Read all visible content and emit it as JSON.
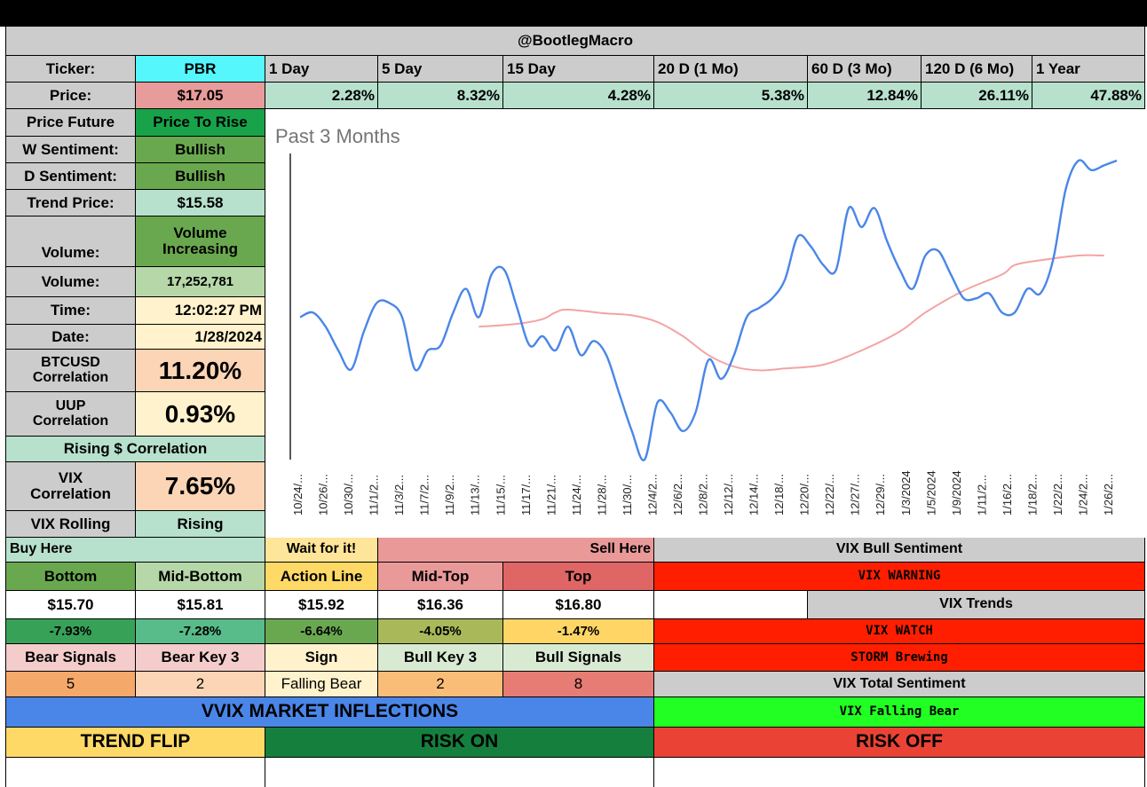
{
  "header": {
    "title": "@BootlegMacro"
  },
  "ticker": {
    "label": "Ticker:",
    "value": "PBR"
  },
  "price": {
    "label": "Price:",
    "value": "$17.05"
  },
  "periods": [
    {
      "label": "1 Day",
      "value": "2.28%"
    },
    {
      "label": "5 Day",
      "value": "8.32%"
    },
    {
      "label": "15 Day",
      "value": "4.28%"
    },
    {
      "label": "20 D (1 Mo)",
      "value": "5.38%"
    },
    {
      "label": "60 D (3 Mo)",
      "value": "12.84%"
    },
    {
      "label": "120 D (6 Mo)",
      "value": "26.11%"
    },
    {
      "label": "1 Year",
      "value": "47.88%"
    }
  ],
  "info": {
    "price_future": {
      "label": "Price Future",
      "value": "Price To Rise"
    },
    "w_sentiment": {
      "label": "W Sentiment:",
      "value": "Bullish"
    },
    "d_sentiment": {
      "label": "D Sentiment:",
      "value": "Bullish"
    },
    "trend_price": {
      "label": "Trend Price:",
      "value": "$15.58"
    },
    "volume_trend": {
      "label": "Volume:",
      "value_line1": "Volume",
      "value_line2": "Increasing"
    },
    "volume": {
      "label": "Volume:",
      "value": "17,252,781"
    },
    "time": {
      "label": "Time:",
      "value": "12:02:27 PM"
    },
    "date": {
      "label": "Date:",
      "value": "1/28/2024"
    },
    "btc": {
      "label_line1": "BTCUSD",
      "label_line2": "Correlation",
      "value": "11.20%"
    },
    "uup": {
      "label_line1": "UUP",
      "label_line2": "Correlation",
      "value": "0.93%"
    },
    "rising": {
      "label": "Rising $ Correlation"
    },
    "vix_corr": {
      "label_line1": "VIX",
      "label_line2": "Correlation",
      "value": "7.65%"
    },
    "vix_rolling": {
      "label": "VIX Rolling",
      "value": "Rising"
    }
  },
  "chart_data": {
    "type": "line",
    "title": "Past 3 Months",
    "categories": [
      "10/24/...",
      "10/26/...",
      "10/30/...",
      "11/1/2...",
      "11/3/2...",
      "11/7/2...",
      "11/9/2...",
      "11/13/...",
      "11/15/...",
      "11/17/...",
      "11/21/...",
      "11/24/...",
      "11/28/...",
      "11/30/...",
      "12/4/2...",
      "12/6/2...",
      "12/8/2...",
      "12/12/...",
      "12/14/...",
      "12/18/...",
      "12/20/...",
      "12/22/...",
      "12/27/...",
      "12/29/...",
      "1/3/2024",
      "1/5/2024",
      "1/9/2024",
      "1/11/2...",
      "1/16/2...",
      "1/18/2...",
      "1/22/2...",
      "1/24/2...",
      "1/26/2..."
    ],
    "ylim": [
      13.9,
      17.2
    ],
    "series": [
      {
        "name": "Price",
        "color": "#4a86e8",
        "x": [
          0,
          1,
          2,
          3,
          4,
          5,
          6,
          7,
          8,
          9,
          10,
          11,
          12,
          13,
          14,
          15,
          16,
          17,
          18,
          19,
          20,
          21,
          22,
          23,
          24,
          25,
          26,
          27,
          28,
          29,
          30,
          31,
          32,
          33,
          34,
          35,
          36,
          37,
          38,
          39,
          40,
          41,
          42,
          43,
          44,
          45,
          46,
          47,
          48,
          49,
          50,
          51,
          52,
          53,
          54,
          55,
          56,
          57,
          58,
          59,
          60,
          61,
          62,
          63,
          64
        ],
        "y": [
          15.4,
          15.45,
          15.3,
          15.05,
          14.85,
          15.25,
          15.55,
          15.55,
          15.4,
          14.85,
          15.05,
          15.1,
          15.45,
          15.7,
          15.4,
          15.85,
          15.9,
          15.5,
          15.1,
          15.2,
          15.05,
          15.3,
          15.0,
          15.15,
          15.0,
          14.6,
          14.2,
          13.9,
          14.5,
          14.4,
          14.2,
          14.4,
          14.95,
          14.75,
          15.0,
          15.4,
          15.5,
          15.6,
          15.8,
          16.25,
          16.15,
          15.95,
          15.9,
          16.55,
          16.35,
          16.55,
          16.2,
          15.9,
          15.7,
          16.05,
          16.1,
          15.85,
          15.6,
          15.6,
          15.65,
          15.45,
          15.45,
          15.7,
          15.65,
          16.0,
          16.75,
          17.05,
          16.95,
          17.0,
          17.05
        ]
      },
      {
        "name": "Trend",
        "color": "#f4a3a3",
        "x": [
          14,
          17,
          19,
          20,
          21,
          24,
          26,
          28,
          30,
          32,
          34,
          36,
          38,
          41,
          44,
          47,
          49,
          52,
          55,
          56,
          58,
          61,
          63
        ],
        "y": [
          15.3,
          15.33,
          15.38,
          15.45,
          15.48,
          15.44,
          15.42,
          15.35,
          15.2,
          15.0,
          14.88,
          14.84,
          14.86,
          14.9,
          15.05,
          15.25,
          15.45,
          15.68,
          15.85,
          15.95,
          16.0,
          16.05,
          16.05
        ]
      }
    ]
  },
  "levels": {
    "buy_here": "Buy Here",
    "wait": "Wait for it!",
    "sell_here": "Sell Here",
    "headers": [
      "Bottom",
      "Mid-Bottom",
      "Action Line",
      "Mid-Top",
      "Top"
    ],
    "prices": [
      "$15.70",
      "$15.81",
      "$15.92",
      "$16.36",
      "$16.80"
    ],
    "pcts": [
      "-7.93%",
      "-7.28%",
      "-6.64%",
      "-4.05%",
      "-1.47%"
    ],
    "signal_headers": [
      "Bear Signals",
      "Bear Key 3",
      "Sign",
      "Bull Key 3",
      "Bull Signals"
    ],
    "signal_values": [
      "5",
      "2",
      "Falling Bear",
      "2",
      "8"
    ]
  },
  "vix": {
    "bull_sentiment": "VIX Bull Sentiment",
    "warning": "VIX WARNING",
    "trends": "VIX Trends",
    "watch": "VIX WATCH",
    "storm": "STORM Brewing",
    "total_sentiment": "VIX Total Sentiment",
    "falling_bear": "VIX Falling Bear"
  },
  "vvix": {
    "title": "VVIX MARKET INFLECTIONS",
    "trend_flip": "TREND FLIP",
    "risk_on": "RISK ON",
    "risk_off": "RISK OFF"
  },
  "colors": {
    "vvix_blue": "#4a86e8",
    "trend_yellow": "#ffd966",
    "risk_on_green": "#15803d",
    "risk_off_red": "#ea4335",
    "vix_green": "#22ff22"
  }
}
